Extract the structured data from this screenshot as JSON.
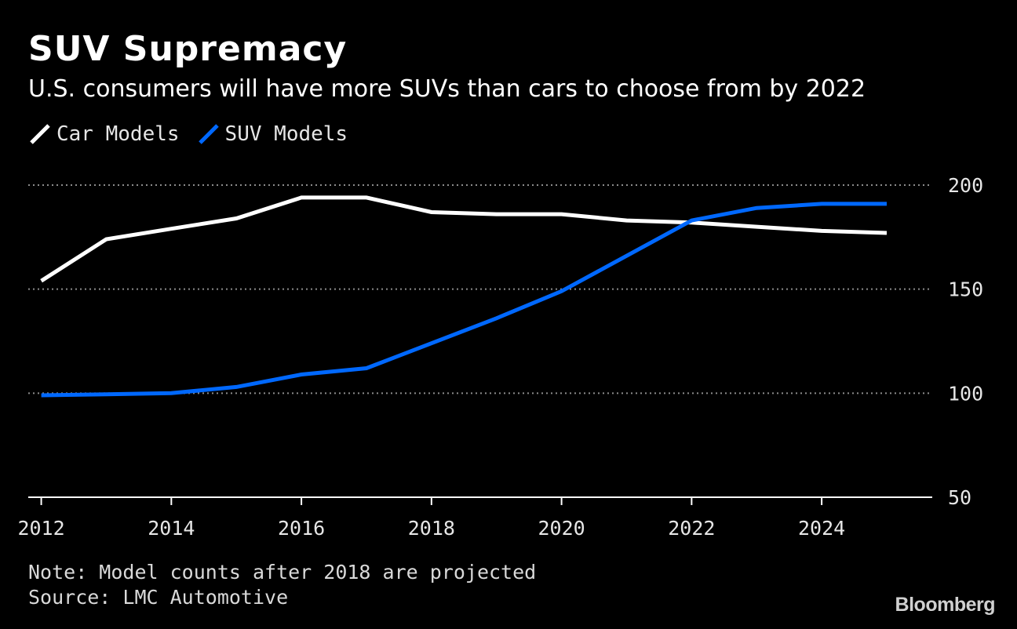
{
  "header": {
    "title": "SUV Supremacy",
    "subtitle": "U.S. consumers will have more SUVs than cars to choose from by 2022"
  },
  "footer": {
    "note": "Note: Model counts after 2018 are projected",
    "source": "Source: LMC Automotive",
    "brand": "Bloomberg"
  },
  "colors": {
    "background": "#000000",
    "car": "#ffffff",
    "suv": "#0068ff",
    "grid": "#8c8c8c",
    "axis": "#ffffff"
  },
  "chart_data": {
    "type": "line",
    "title": "SUV Supremacy",
    "xlabel": "",
    "ylabel": "",
    "x": [
      2012,
      2013,
      2014,
      2015,
      2016,
      2017,
      2018,
      2019,
      2020,
      2021,
      2022,
      2023,
      2024,
      2025
    ],
    "xlim": [
      2011.8,
      2025.7
    ],
    "ylim": [
      50,
      200
    ],
    "x_ticks": [
      2012,
      2014,
      2016,
      2018,
      2020,
      2022,
      2024
    ],
    "x_tick_labels": [
      "2012",
      "2014",
      "2016",
      "2018",
      "2020",
      "2022",
      "2024"
    ],
    "y_ticks": [
      50,
      100,
      150,
      200
    ],
    "y_tick_labels": [
      "50",
      "100",
      "150",
      "200"
    ],
    "grid": true,
    "legend_position": "top-left",
    "series": [
      {
        "name": "Car Models",
        "color": "#ffffff",
        "values": [
          154,
          174,
          179,
          184,
          194,
          194,
          187,
          186,
          186,
          183,
          182,
          180,
          178,
          177
        ]
      },
      {
        "name": "SUV Models",
        "color": "#0068ff",
        "values": [
          99,
          99.5,
          100,
          103,
          109,
          112,
          124,
          136,
          149,
          166,
          183,
          189,
          191,
          191
        ]
      }
    ]
  }
}
